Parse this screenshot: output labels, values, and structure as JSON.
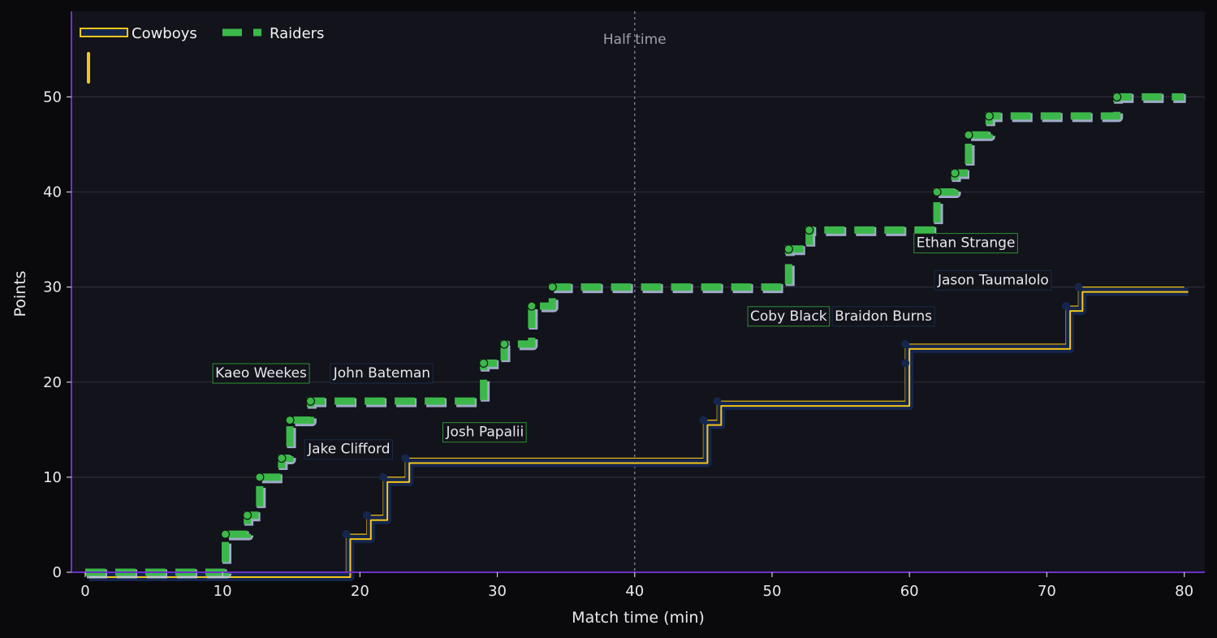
{
  "chart_data": {
    "type": "line",
    "step": true,
    "xlabel": "Match time (min)",
    "ylabel": "Points",
    "xlim": [
      -1,
      81.5
    ],
    "ylim": [
      0,
      59
    ],
    "xticks": [
      0,
      10,
      20,
      30,
      40,
      50,
      60,
      70,
      80
    ],
    "yticks": [
      0,
      10,
      20,
      30,
      40,
      50
    ],
    "grid": "horizontal",
    "legend_position": "top-left",
    "halftime": {
      "x": 40,
      "label": "Half time"
    },
    "series": [
      {
        "name": "Cowboys",
        "color": "#f5c518",
        "points": [
          [
            0,
            0
          ],
          [
            19,
            4
          ],
          [
            20.5,
            6
          ],
          [
            21.7,
            10
          ],
          [
            23.3,
            12
          ],
          [
            45,
            16
          ],
          [
            46,
            18
          ],
          [
            59.7,
            22
          ],
          [
            59.7,
            24
          ],
          [
            71.4,
            28
          ],
          [
            72.3,
            30
          ],
          [
            80,
            30
          ]
        ]
      },
      {
        "name": "Raiders",
        "color": "#3cb84a",
        "points": [
          [
            0,
            0
          ],
          [
            10.2,
            4
          ],
          [
            11.8,
            6
          ],
          [
            12.7,
            10
          ],
          [
            14.3,
            12
          ],
          [
            14.9,
            16
          ],
          [
            16.4,
            18
          ],
          [
            29,
            22
          ],
          [
            30.5,
            24
          ],
          [
            32.5,
            28
          ],
          [
            34,
            30
          ],
          [
            51.2,
            34
          ],
          [
            52.7,
            36
          ],
          [
            62,
            40
          ],
          [
            63.3,
            42
          ],
          [
            64.3,
            46
          ],
          [
            65.8,
            48
          ],
          [
            75.1,
            50
          ],
          [
            80,
            50
          ]
        ]
      }
    ],
    "annotations": [
      {
        "text": "Kaeo Weekes",
        "x": 12.8,
        "y": 21,
        "team": "Raiders"
      },
      {
        "text": "John Bateman",
        "x": 21.6,
        "y": 21,
        "team": "Cowboys"
      },
      {
        "text": "Jake Clifford",
        "x": 19.2,
        "y": 13,
        "team": "Cowboys"
      },
      {
        "text": "Josh Papalii",
        "x": 29.1,
        "y": 14.8,
        "team": "Raiders"
      },
      {
        "text": "Coby Black",
        "x": 51.2,
        "y": 27,
        "team": "Raiders"
      },
      {
        "text": "Braidon Burns",
        "x": 58.1,
        "y": 27,
        "team": "Cowboys"
      },
      {
        "text": "Ethan Strange",
        "x": 64.1,
        "y": 34.7,
        "team": "Raiders"
      },
      {
        "text": "Jason Taumalolo",
        "x": 66.1,
        "y": 30.8,
        "team": "Cowboys"
      }
    ]
  }
}
